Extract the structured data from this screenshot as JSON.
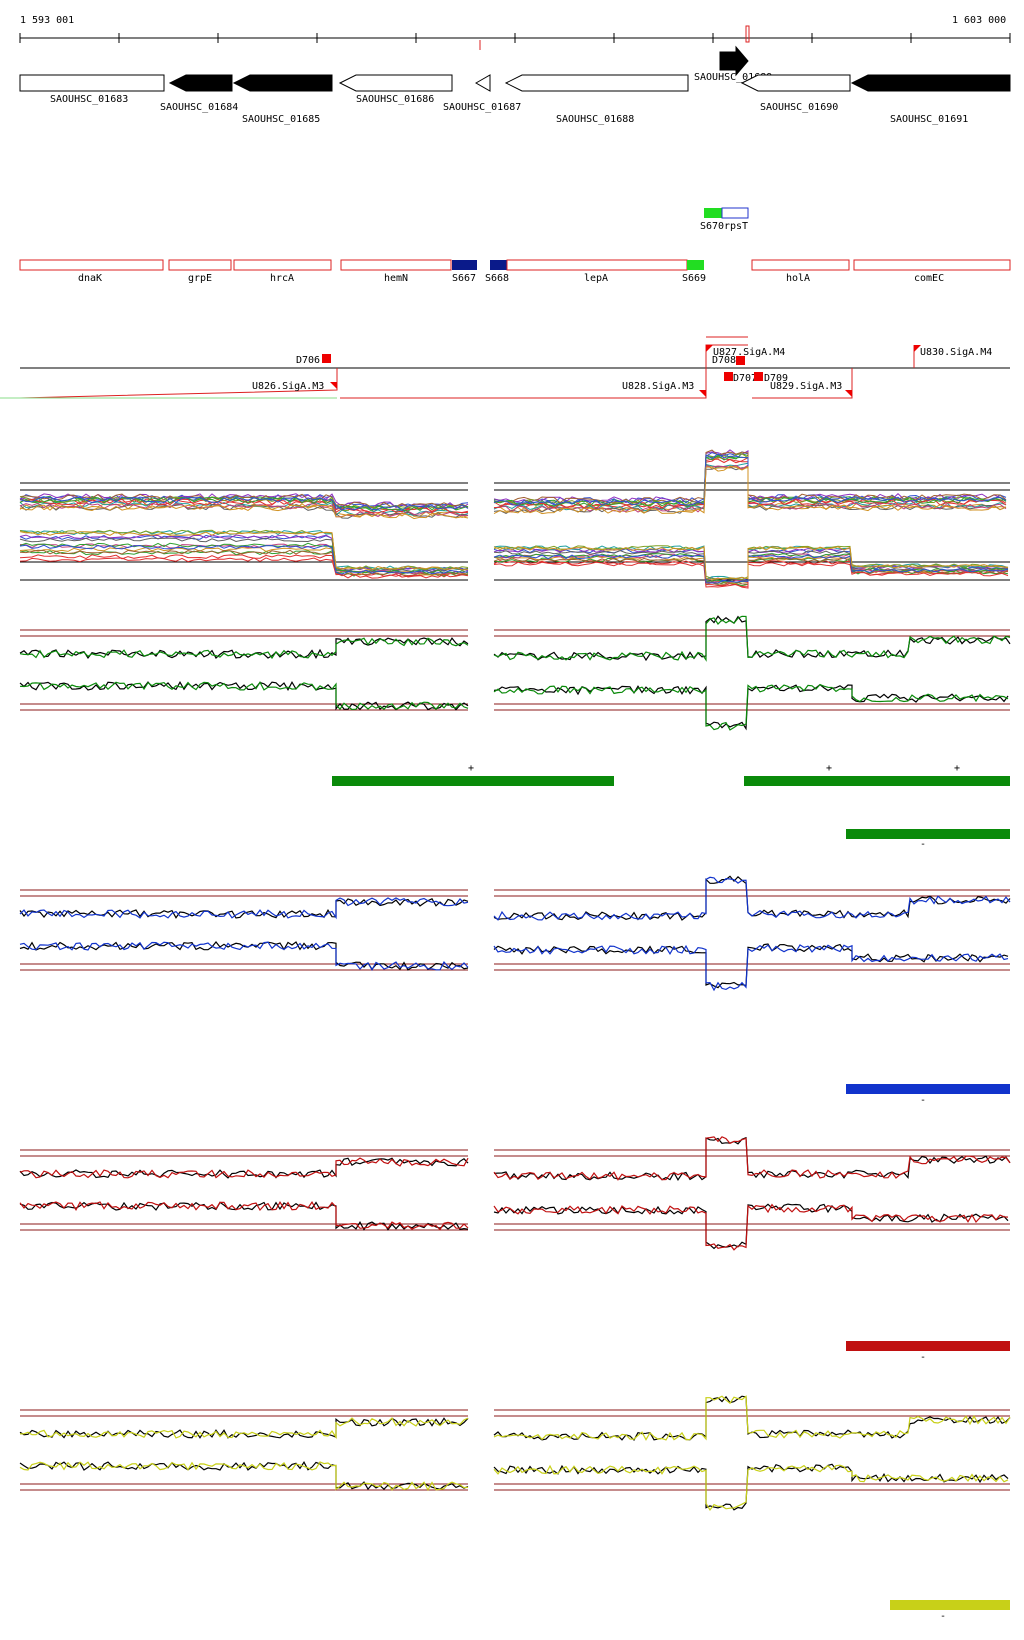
{
  "ruler": {
    "start_label": "1 593 001",
    "end_label": "1 603 000"
  },
  "genes": [
    {
      "name": "SAOUHSC_01683",
      "strand": "+",
      "filled": false
    },
    {
      "name": "SAOUHSC_01684",
      "strand": "-",
      "filled": true
    },
    {
      "name": "SAOUHSC_01685",
      "strand": "-",
      "filled": true
    },
    {
      "name": "SAOUHSC_01686",
      "strand": "-",
      "filled": false
    },
    {
      "name": "SAOUHSC_01687",
      "strand": "-",
      "filled": false
    },
    {
      "name": "SAOUHSC_01688",
      "strand": "-",
      "filled": false
    },
    {
      "name": "SAOUHSC_01689",
      "strand": "+",
      "filled": true
    },
    {
      "name": "SAOUHSC_01690",
      "strand": "-",
      "filled": false
    },
    {
      "name": "SAOUHSC_01691",
      "strand": "-",
      "filled": true
    }
  ],
  "upper_features": [
    {
      "label": "S670",
      "color": "#22dd22"
    },
    {
      "label": "rpsT",
      "color": "#2233cc"
    }
  ],
  "annotations": [
    {
      "label": "dnaK"
    },
    {
      "label": "grpE"
    },
    {
      "label": "hrcA"
    },
    {
      "label": "hemN"
    },
    {
      "label": "S667"
    },
    {
      "label": "S668"
    },
    {
      "label": "lepA"
    },
    {
      "label": "S669"
    },
    {
      "label": "holA"
    },
    {
      "label": "comEC"
    }
  ],
  "promoters": [
    {
      "label": "D706"
    },
    {
      "label": "U826.SigA.M3"
    },
    {
      "label": "U827.SigA.M4"
    },
    {
      "label": "D708"
    },
    {
      "label": "D707"
    },
    {
      "label": "D709"
    },
    {
      "label": "U828.SigA.M3"
    },
    {
      "label": "U829.SigA.M3"
    },
    {
      "label": "U830.SigA.M4"
    }
  ],
  "panels": [
    {
      "id": "green",
      "color": "#0a8a0a",
      "plus_marks": [
        "+",
        "+",
        "+"
      ],
      "minus_mark": "-"
    },
    {
      "id": "blue",
      "color": "#1133cc",
      "minus_mark": "-"
    },
    {
      "id": "red",
      "color": "#c01010",
      "minus_mark": "-"
    },
    {
      "id": "yellow",
      "color": "#c8d018",
      "minus_mark": "-"
    }
  ],
  "colors": {
    "threshold": "#8b1a1a",
    "gene_outline": "#000000",
    "annotation": "#dd2222"
  }
}
